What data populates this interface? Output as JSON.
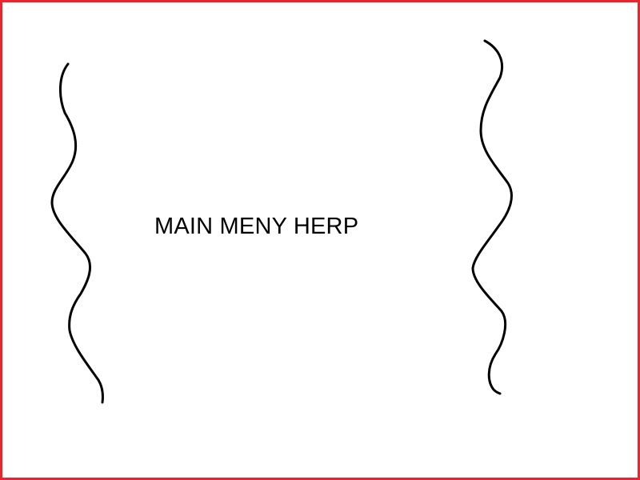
{
  "main_menu": {
    "title": "MAIN MENY HERP"
  },
  "colors": {
    "border": "#e8262d",
    "ink": "#000000",
    "background": "#ffffff"
  },
  "decorations": {
    "left": "left-squiggle-line",
    "right": "right-squiggle-line"
  }
}
